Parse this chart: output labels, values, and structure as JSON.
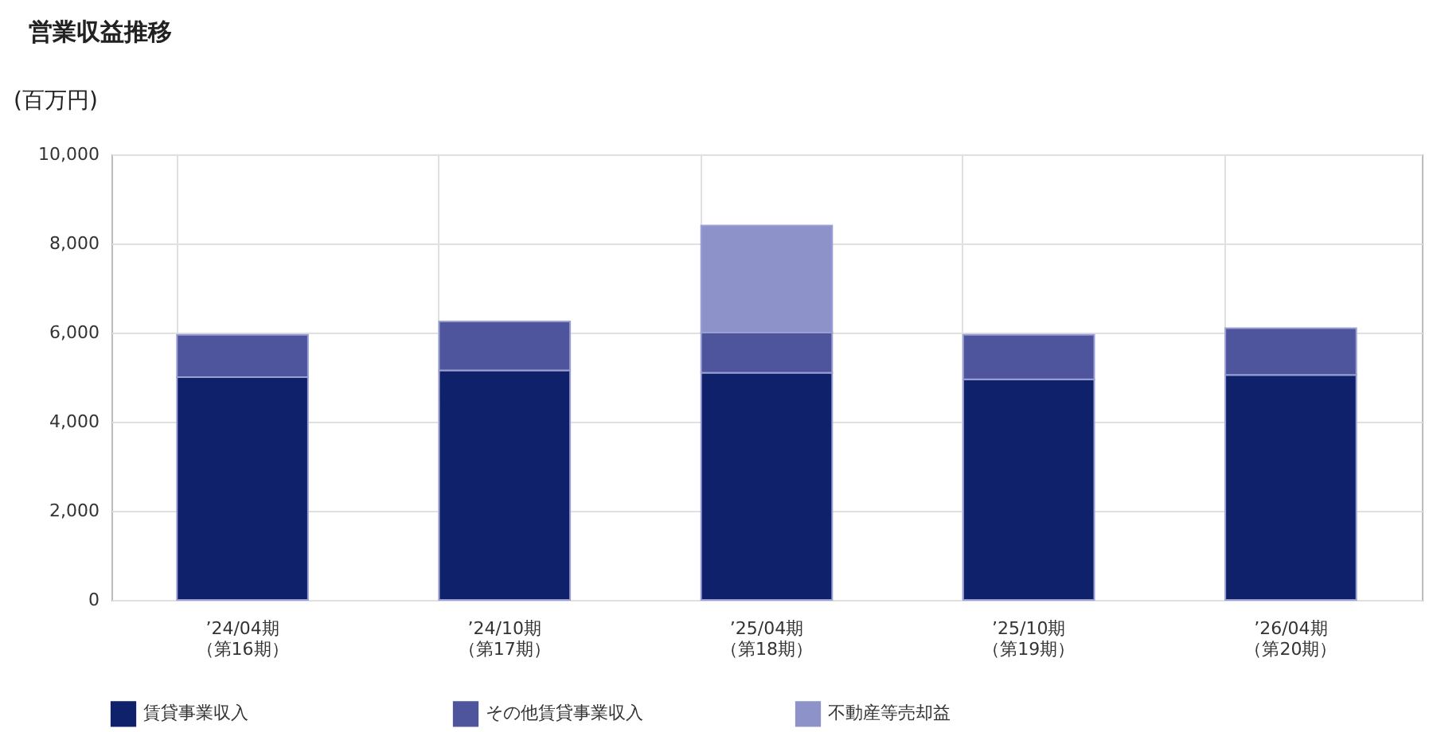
{
  "chart_data": {
    "type": "bar",
    "title": "営業収益推移",
    "ylabel": "(百万円)",
    "categories": [
      "’24/04期（第16期）",
      "’24/10期（第17期）",
      "’25/04期（第18期）",
      "’25/10期（第19期）",
      "’26/04期（第20期）"
    ],
    "stacked": true,
    "series": [
      {
        "name": "賃貸事業収入",
        "color": "#10216b",
        "values": [
          5000,
          5150,
          5100,
          4950,
          5050
        ]
      },
      {
        "name": "その他賃貸事業収入",
        "color": "#4e559d",
        "values": [
          950,
          1100,
          900,
          1000,
          1050
        ]
      },
      {
        "name": "不動産等売却益",
        "color": "#8d93c8",
        "values": [
          null,
          null,
          2400,
          null,
          null
        ]
      }
    ],
    "ylim": [
      0,
      10000
    ],
    "yticks": [
      0,
      {
        "value": 2000,
        "label": "2,000"
      },
      {
        "value": 4000,
        "label": "4,000"
      },
      {
        "value": 6000,
        "label": "6,000"
      },
      {
        "value": 8000,
        "label": "8,000"
      },
      {
        "value": 10000,
        "label": "10,000"
      }
    ],
    "grid": true,
    "legend": "bottom"
  }
}
